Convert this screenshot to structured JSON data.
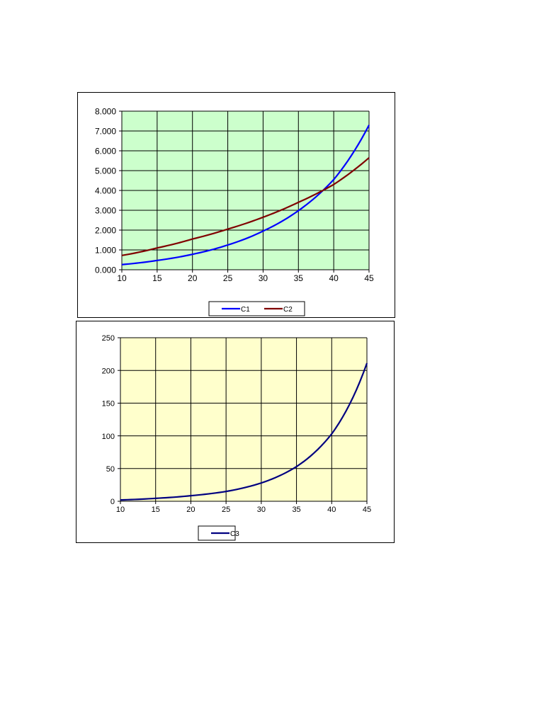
{
  "chart_data": [
    {
      "type": "line",
      "title": "",
      "xlabel": "",
      "ylabel": "",
      "x": [
        10,
        15,
        20,
        25,
        30,
        35,
        40,
        45
      ],
      "xlim": [
        10,
        45
      ],
      "ylim": [
        0,
        8
      ],
      "x_ticks": [
        "10",
        "15",
        "20",
        "25",
        "30",
        "35",
        "40",
        "45"
      ],
      "y_ticks": [
        "0.000",
        "1.000",
        "2.000",
        "3.000",
        "4.000",
        "5.000",
        "6.000",
        "7.000",
        "8.000"
      ],
      "grid": true,
      "legend": "bottom",
      "plot_background": "#ccffcc",
      "series": [
        {
          "name": "C1",
          "color": "#0000ff",
          "values": [
            0.26,
            0.47,
            0.78,
            1.25,
            1.95,
            2.98,
            4.55,
            7.3
          ]
        },
        {
          "name": "C2",
          "color": "#800000",
          "values": [
            0.72,
            1.1,
            1.55,
            2.05,
            2.65,
            3.4,
            4.3,
            5.65
          ]
        }
      ]
    },
    {
      "type": "line",
      "title": "",
      "xlabel": "",
      "ylabel": "",
      "x": [
        10,
        15,
        20,
        25,
        30,
        35,
        40,
        45
      ],
      "xlim": [
        10,
        45
      ],
      "ylim": [
        0,
        250
      ],
      "x_ticks": [
        "10",
        "15",
        "20",
        "25",
        "30",
        "35",
        "40",
        "45"
      ],
      "y_ticks": [
        "0",
        "50",
        "100",
        "150",
        "200",
        "250"
      ],
      "grid": true,
      "legend": "bottom-left",
      "plot_background": "#ffffcc",
      "series": [
        {
          "name": "C3",
          "color": "#000080",
          "values": [
            2,
            4.5,
            8.5,
            15,
            28,
            53,
            103,
            211
          ]
        }
      ]
    }
  ]
}
